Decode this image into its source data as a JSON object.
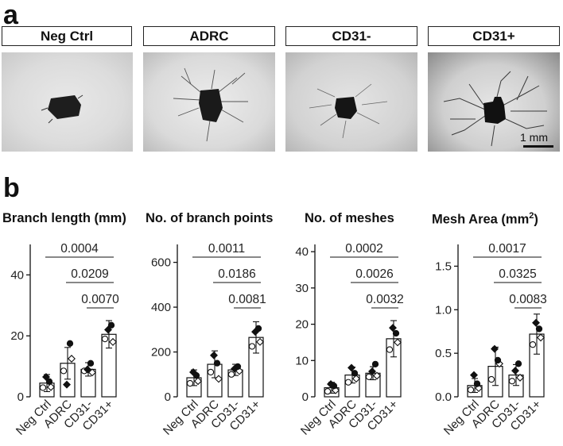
{
  "panel_a": {
    "letter": "a",
    "labels": [
      "Neg Ctrl",
      "ADRC",
      "CD31-",
      "CD31+"
    ],
    "scale_bar": "1 mm"
  },
  "panel_b": {
    "letter": "b"
  },
  "chart_data": [
    {
      "type": "bar",
      "title": "Branch length (mm)",
      "categories": [
        "Neg Ctrl",
        "ADRC",
        "CD31-",
        "CD31+"
      ],
      "values": [
        4.5,
        11,
        9,
        20.5
      ],
      "errors": [
        2.8,
        5.2,
        2.2,
        4.5
      ],
      "points": [
        [
          3,
          6.5,
          3.2,
          5
        ],
        [
          8.5,
          4,
          12.5,
          17.5
        ],
        [
          8.5,
          9,
          8,
          11
        ],
        [
          19,
          22,
          18,
          23.5
        ]
      ],
      "ylim": [
        0,
        50
      ],
      "yticks": [
        0,
        20,
        40
      ],
      "comparisons": [
        {
          "from": "Neg Ctrl",
          "to": "CD31+",
          "p": "0.0004"
        },
        {
          "from": "ADRC",
          "to": "CD31+",
          "p": "0.0209"
        },
        {
          "from": "CD31-",
          "to": "CD31+",
          "p": "0.0070"
        }
      ]
    },
    {
      "type": "bar",
      "title": "No. of branch points",
      "categories": [
        "Neg Ctrl",
        "ADRC",
        "CD31-",
        "CD31+"
      ],
      "values": [
        85,
        145,
        120,
        265
      ],
      "errors": [
        35,
        60,
        25,
        70
      ],
      "points": [
        [
          60,
          110,
          70,
          95
        ],
        [
          110,
          185,
          80,
          150
        ],
        [
          100,
          125,
          115,
          135
        ],
        [
          225,
          290,
          245,
          305
        ]
      ],
      "ylim": [
        0,
        680
      ],
      "yticks": [
        0,
        200,
        400,
        600
      ],
      "comparisons": [
        {
          "from": "Neg Ctrl",
          "to": "CD31+",
          "p": "0.0011"
        },
        {
          "from": "ADRC",
          "to": "CD31+",
          "p": "0.0186"
        },
        {
          "from": "CD31-",
          "to": "CD31+",
          "p": "0.0081"
        }
      ]
    },
    {
      "type": "bar",
      "title": "No. of meshes",
      "categories": [
        "Neg Ctrl",
        "ADRC",
        "CD31-",
        "CD31+"
      ],
      "values": [
        2.5,
        6,
        6.5,
        16
      ],
      "errors": [
        1.5,
        2.2,
        1.8,
        5
      ],
      "points": [
        [
          1.5,
          3.5,
          1.8,
          3
        ],
        [
          4,
          8,
          5,
          6.5
        ],
        [
          5.5,
          7,
          5.8,
          9
        ],
        [
          13,
          19,
          15,
          17.5
        ]
      ],
      "ylim": [
        0,
        42
      ],
      "yticks": [
        0,
        10,
        20,
        30,
        40
      ],
      "comparisons": [
        {
          "from": "Neg Ctrl",
          "to": "CD31+",
          "p": "0.0002"
        },
        {
          "from": "ADRC",
          "to": "CD31+",
          "p": "0.0026"
        },
        {
          "from": "CD31-",
          "to": "CD31+",
          "p": "0.0032"
        }
      ]
    },
    {
      "type": "bar",
      "title": "Mesh Area (mm",
      "title_sup": "2",
      "title_end": ")",
      "categories": [
        "Neg Ctrl",
        "ADRC",
        "CD31-",
        "CD31+"
      ],
      "values": [
        0.13,
        0.35,
        0.25,
        0.72
      ],
      "errors": [
        0.08,
        0.22,
        0.12,
        0.23
      ],
      "points": [
        [
          0.08,
          0.25,
          0.1,
          0.15
        ],
        [
          0.2,
          0.55,
          0.38,
          0.42
        ],
        [
          0.18,
          0.3,
          0.22,
          0.38
        ],
        [
          0.6,
          0.85,
          0.68,
          0.78
        ]
      ],
      "ylim": [
        0,
        1.75
      ],
      "yticks": [
        0,
        0.5,
        1,
        1.5
      ],
      "yticklabels": [
        "0.0",
        "0.5",
        "1.0",
        "1.5"
      ],
      "comparisons": [
        {
          "from": "Neg Ctrl",
          "to": "CD31+",
          "p": "0.0017"
        },
        {
          "from": "ADRC",
          "to": "CD31+",
          "p": "0.0325"
        },
        {
          "from": "CD31-",
          "to": "CD31+",
          "p": "0.0083"
        }
      ]
    }
  ]
}
